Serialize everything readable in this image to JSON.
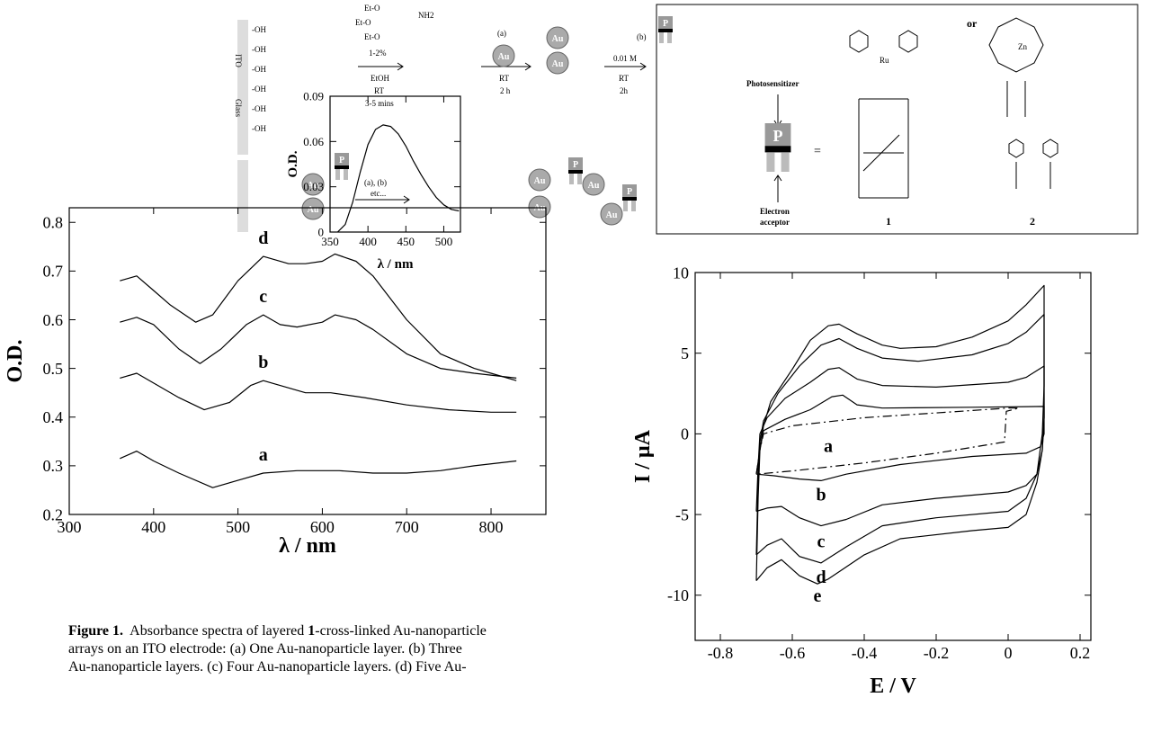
{
  "scheme": {
    "substrate": [
      "ITO",
      "Glass"
    ],
    "hydroxyl": "-OH",
    "silane": [
      "Et-O",
      "Et-O",
      "Et-O"
    ],
    "amine": "NH2",
    "step1": [
      "1-2%",
      "EtOH",
      "RT",
      "3-5 mins"
    ],
    "step2": [
      "(a)",
      "RT",
      "2 h"
    ],
    "step3": [
      "(b)",
      "0.01 M",
      "RT",
      "2h"
    ],
    "step4": [
      "(a), (b)",
      "etc..."
    ],
    "particle": "Au",
    "sensitizer": "P",
    "legend": {
      "top": "Photosensitizer",
      "bottom": [
        "Electron",
        "acceptor"
      ],
      "equals": "=",
      "or": "or",
      "compounds": [
        "1",
        "2"
      ],
      "metals": [
        "Ru",
        "Zn"
      ]
    }
  },
  "caption": {
    "label": "Figure 1.",
    "first": "Absorbance spectra of layered ",
    "bold": "1",
    "rest": "-cross-linked Au-nanoparticle",
    "lines": [
      "arrays on an ITO electrode:  (a) One Au-nanoparticle layer. (b) Three",
      "Au-nanoparticle layers. (c) Four Au-nanoparticle layers. (d) Five Au-"
    ]
  },
  "chart_data": [
    {
      "type": "line",
      "xlabel": "λ / nm",
      "ylabel": "O.D.",
      "xlim": [
        300,
        865
      ],
      "ylim": [
        0.2,
        0.83
      ],
      "xticks": [
        300,
        400,
        500,
        600,
        700,
        800
      ],
      "yticks": [
        0.2,
        0.3,
        0.4,
        0.5,
        0.6,
        0.7,
        0.8
      ],
      "series": [
        {
          "name": "a",
          "color": "#000",
          "x": [
            360,
            380,
            400,
            430,
            470,
            500,
            530,
            570,
            620,
            660,
            700,
            740,
            780,
            830
          ],
          "values": [
            0.315,
            0.33,
            0.31,
            0.285,
            0.255,
            0.27,
            0.285,
            0.29,
            0.29,
            0.285,
            0.285,
            0.29,
            0.3,
            0.31
          ]
        },
        {
          "name": "b",
          "color": "#000",
          "x": [
            360,
            380,
            400,
            430,
            460,
            490,
            515,
            530,
            550,
            580,
            610,
            650,
            700,
            750,
            800,
            830
          ],
          "values": [
            0.48,
            0.49,
            0.47,
            0.44,
            0.415,
            0.43,
            0.465,
            0.475,
            0.465,
            0.45,
            0.45,
            0.44,
            0.425,
            0.415,
            0.41,
            0.41
          ]
        },
        {
          "name": "c",
          "color": "#000",
          "x": [
            360,
            380,
            400,
            430,
            455,
            480,
            510,
            530,
            550,
            570,
            600,
            615,
            640,
            660,
            700,
            740,
            780,
            830
          ],
          "values": [
            0.595,
            0.605,
            0.59,
            0.54,
            0.51,
            0.54,
            0.59,
            0.61,
            0.59,
            0.585,
            0.595,
            0.61,
            0.6,
            0.58,
            0.53,
            0.5,
            0.49,
            0.48
          ]
        },
        {
          "name": "d",
          "color": "#000",
          "x": [
            360,
            380,
            400,
            420,
            450,
            470,
            500,
            530,
            560,
            580,
            600,
            615,
            640,
            660,
            700,
            740,
            780,
            800,
            830
          ],
          "values": [
            0.68,
            0.69,
            0.66,
            0.63,
            0.595,
            0.61,
            0.68,
            0.73,
            0.715,
            0.715,
            0.72,
            0.735,
            0.72,
            0.69,
            0.6,
            0.53,
            0.5,
            0.49,
            0.475
          ]
        }
      ]
    },
    {
      "type": "line",
      "xlabel": "λ / nm",
      "ylabel": "O.D.",
      "xlim": [
        350,
        522
      ],
      "ylim": [
        0,
        0.09
      ],
      "xticks": [
        350,
        400,
        450,
        500
      ],
      "yticks": [
        0,
        0.03,
        0.06,
        0.09
      ],
      "series": [
        {
          "color": "#000",
          "x": [
            360,
            370,
            380,
            390,
            400,
            410,
            420,
            430,
            440,
            450,
            460,
            470,
            480,
            490,
            500,
            510,
            520
          ],
          "values": [
            0,
            0.005,
            0.02,
            0.04,
            0.058,
            0.068,
            0.071,
            0.07,
            0.065,
            0.057,
            0.047,
            0.038,
            0.03,
            0.023,
            0.018,
            0.015,
            0.014
          ]
        }
      ]
    },
    {
      "type": "line",
      "xlabel": "E / V",
      "ylabel": "I / μA",
      "xlim": [
        -0.87,
        0.23
      ],
      "ylim": [
        -12.8,
        10
      ],
      "xticks": [
        -0.8,
        -0.6,
        -0.4,
        -0.2,
        0,
        0.2
      ],
      "yticks": [
        -10,
        -5,
        0,
        5,
        10
      ],
      "series": [
        {
          "name": "a",
          "color": "#000",
          "style": "dash-dot",
          "x": [
            -0.7,
            -0.69,
            -0.68,
            -0.6,
            -0.4,
            -0.2,
            0,
            0.03,
            -0.005,
            -0.01,
            -0.2,
            -0.4,
            -0.6,
            -0.7
          ],
          "values": [
            -2.5,
            -1,
            0,
            0.5,
            1,
            1.3,
            1.6,
            1.6,
            1.4,
            -0.5,
            -1.2,
            -1.8,
            -2.3,
            -2.5
          ]
        },
        {
          "name": "b",
          "color": "#000",
          "x": [
            -0.7,
            -0.69,
            -0.68,
            -0.62,
            -0.55,
            -0.49,
            -0.46,
            -0.42,
            -0.35,
            -0.1,
            0.1,
            0.1,
            0.09,
            0.05,
            -0.1,
            -0.3,
            -0.45,
            -0.52,
            -0.58,
            -0.65,
            -0.7
          ],
          "values": [
            -2.5,
            -1,
            0.2,
            0.9,
            1.5,
            2.3,
            2.4,
            1.8,
            1.6,
            1.65,
            1.7,
            0,
            -0.8,
            -1.2,
            -1.4,
            -1.9,
            -2.5,
            -2.9,
            -2.8,
            -2.6,
            -2.5
          ]
        },
        {
          "name": "c",
          "color": "#000",
          "x": [
            -0.7,
            -0.695,
            -0.69,
            -0.67,
            -0.62,
            -0.55,
            -0.5,
            -0.47,
            -0.42,
            -0.35,
            -0.2,
            0,
            0.05,
            0.1,
            0.1,
            0.095,
            0.08,
            0.05,
            0,
            -0.2,
            -0.35,
            -0.45,
            -0.52,
            -0.58,
            -0.63,
            -0.67,
            -0.7
          ],
          "values": [
            -4.8,
            -2,
            0,
            1,
            2.2,
            3.2,
            4,
            4.1,
            3.4,
            3,
            2.9,
            3.2,
            3.5,
            4.2,
            1,
            -1,
            -2.5,
            -3.2,
            -3.6,
            -4,
            -4.4,
            -5.3,
            -5.7,
            -5.2,
            -4.5,
            -4.6,
            -4.8
          ]
        },
        {
          "name": "d",
          "color": "#000",
          "x": [
            -0.7,
            -0.695,
            -0.69,
            -0.68,
            -0.64,
            -0.58,
            -0.52,
            -0.47,
            -0.42,
            -0.35,
            -0.25,
            -0.1,
            0,
            0.05,
            0.1,
            0.1,
            0.095,
            0.08,
            0.05,
            0,
            -0.2,
            -0.35,
            -0.45,
            -0.52,
            -0.58,
            -0.63,
            -0.67,
            -0.7
          ],
          "values": [
            -7.5,
            -3,
            -0.5,
            0.8,
            2.5,
            4.2,
            5.5,
            5.9,
            5.3,
            4.7,
            4.5,
            4.9,
            5.6,
            6.3,
            7.4,
            3,
            0,
            -2.5,
            -4,
            -4.8,
            -5.2,
            -5.7,
            -7,
            -8,
            -7.6,
            -6.5,
            -6.9,
            -7.5
          ]
        },
        {
          "name": "e",
          "color": "#000",
          "x": [
            -0.7,
            -0.695,
            -0.69,
            -0.68,
            -0.66,
            -0.6,
            -0.55,
            -0.5,
            -0.47,
            -0.42,
            -0.35,
            -0.3,
            -0.2,
            -0.1,
            0,
            0.05,
            0.1,
            0.1,
            0.1,
            0.095,
            0.08,
            0.05,
            0,
            -0.1,
            -0.3,
            -0.4,
            -0.5,
            -0.53,
            -0.58,
            -0.63,
            -0.67,
            -0.7
          ],
          "values": [
            -9.1,
            -4,
            -1,
            0.5,
            2,
            4,
            5.8,
            6.7,
            6.8,
            6.2,
            5.5,
            5.3,
            5.4,
            6,
            7,
            8,
            9.2,
            6,
            1,
            -1,
            -3,
            -5,
            -5.8,
            -6,
            -6.5,
            -7.5,
            -9,
            -9.3,
            -8.8,
            -7.8,
            -8.3,
            -9.1
          ]
        }
      ]
    }
  ]
}
